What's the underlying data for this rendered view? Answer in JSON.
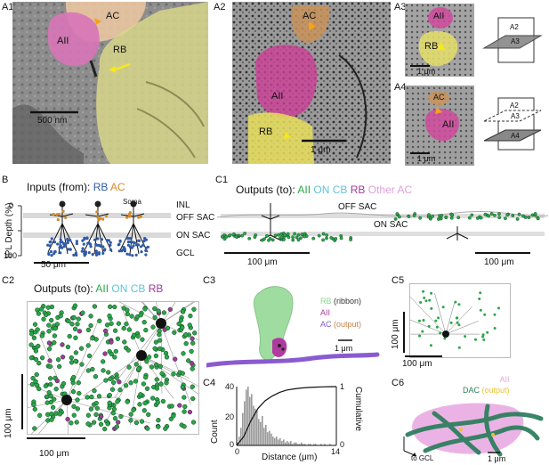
{
  "panels": {
    "A1": {
      "label": "A1",
      "cells": {
        "ac": "AC",
        "aii": "AII",
        "rb": "RB"
      },
      "scale": "500 nm"
    },
    "A2": {
      "label": "A2",
      "cells": {
        "ac": "AC",
        "aii": "AII",
        "rb": "RB"
      },
      "scale": "1 μm"
    },
    "A3": {
      "label": "A3",
      "cells": {
        "aii": "AII",
        "rb": "RB"
      },
      "scale": "1 μm",
      "planes": [
        "A2",
        "A3"
      ]
    },
    "A4": {
      "label": "A4",
      "cells": {
        "ac": "AC",
        "aii": "AII"
      },
      "scale": "1 μm",
      "planes": [
        "A2",
        "A3",
        "A4"
      ]
    },
    "B": {
      "label": "B",
      "title_prefix": "Inputs (from):",
      "legend": [
        {
          "text": "RB",
          "color": "#2f5aa8"
        },
        {
          "text": "AC",
          "color": "#d48a2a"
        }
      ],
      "soma_label": "Soma",
      "ylabel": "IPL Depth (%)",
      "yticks": [
        "0",
        "100"
      ],
      "layers": [
        "INL",
        "OFF SAC",
        "ON SAC",
        "GCL"
      ],
      "scale": "50 μm"
    },
    "C1": {
      "label": "C1",
      "title_prefix": "Outputs (to):",
      "legend": [
        {
          "text": "AII",
          "color": "#2aa64a"
        },
        {
          "text": "ON CB",
          "color": "#5fc4d6"
        },
        {
          "text": "RB",
          "color": "#a0399a"
        },
        {
          "text": "Other AC",
          "color": "#e0a0d8"
        }
      ],
      "layers": [
        "OFF SAC",
        "ON SAC"
      ],
      "scale_left": "100 μm",
      "scale_right": "100 μm"
    },
    "C2": {
      "label": "C2",
      "title_prefix": "Outputs (to):",
      "legend": [
        {
          "text": "AII",
          "color": "#2aa64a"
        },
        {
          "text": "ON CB",
          "color": "#5fc4d6"
        },
        {
          "text": "RB",
          "color": "#a0399a"
        }
      ],
      "scale_v": "100 μm",
      "scale_h": "100 μm"
    },
    "C3": {
      "label": "C3",
      "legend": [
        {
          "text": "RB",
          "suffix": " (ribbon)",
          "color": "#8fd68f",
          "suffix_color": "#333333"
        },
        {
          "text": "AII",
          "suffix": "",
          "color": "#b03aa0",
          "suffix_color": "#333333"
        },
        {
          "text": "AC",
          "suffix": " (output)",
          "color": "#7b5bc8",
          "suffix_color": "#c9824a"
        }
      ],
      "scale": "1 μm"
    },
    "C4": {
      "label": "C4",
      "ylabel": "Count",
      "y2label": "Cumulative",
      "xlabel": "Distance (μm)",
      "yticks": [
        "0",
        "20",
        "40"
      ],
      "y2ticks": [
        "0",
        "1"
      ],
      "xticks": [
        "0",
        "14"
      ]
    },
    "C5": {
      "label": "C5",
      "scale_v": "100 μm",
      "scale_h": "100 μm"
    },
    "C6": {
      "label": "C6",
      "legend": [
        {
          "text": "AII",
          "suffix": "",
          "color": "#e7a6e0",
          "suffix_color": "#e7a6e0"
        },
        {
          "text": "DAC",
          "suffix": " (output)",
          "color": "#2f7f5f",
          "suffix_color": "#e8c23a"
        }
      ],
      "axis_label": "to GCL",
      "scale": "1 μm"
    }
  },
  "chart_data": {
    "type": "bar",
    "xlabel": "Distance (μm)",
    "ylabel": "Count",
    "y2label": "Cumulative",
    "xlim": [
      0,
      14
    ],
    "ylim": [
      0,
      40
    ],
    "bin_width": 0.25,
    "bin_starts": [
      0,
      0.25,
      0.5,
      0.75,
      1,
      1.25,
      1.5,
      1.75,
      2,
      2.25,
      2.5,
      2.75,
      3,
      3.25,
      3.5,
      3.75,
      4,
      4.25,
      4.5,
      4.75,
      5,
      5.25,
      5.5,
      5.75,
      6,
      6.25,
      6.5,
      6.75,
      7,
      7.25,
      7.5,
      7.75,
      8,
      8.25,
      8.5,
      8.75,
      9,
      9.25,
      9.5,
      9.75,
      10,
      10.25,
      10.5,
      10.75,
      11,
      11.25,
      11.5,
      11.75,
      12,
      12.25,
      12.5,
      12.75,
      13,
      13.25,
      13.5,
      13.75
    ],
    "values": [
      2,
      6,
      12,
      22,
      30,
      38,
      40,
      33,
      35,
      27,
      25,
      24,
      18,
      16,
      20,
      12,
      14,
      9,
      10,
      8,
      6,
      5,
      6,
      4,
      5,
      3,
      4,
      2,
      3,
      2,
      3,
      1,
      2,
      2,
      1,
      1,
      2,
      1,
      1,
      0,
      1,
      1,
      0,
      1,
      1,
      0,
      0,
      1,
      0,
      1,
      0,
      0,
      1,
      0,
      0,
      0
    ],
    "series": [
      {
        "name": "Cumulative",
        "axis": "right",
        "ylim": [
          0,
          1
        ],
        "x": [
          0,
          1,
          2,
          3,
          4,
          5,
          6,
          7,
          8,
          9,
          10,
          11,
          12,
          13,
          14
        ],
        "values": [
          0.0,
          0.15,
          0.42,
          0.63,
          0.76,
          0.84,
          0.9,
          0.94,
          0.96,
          0.975,
          0.985,
          0.99,
          0.995,
          0.998,
          1.0
        ]
      }
    ]
  }
}
